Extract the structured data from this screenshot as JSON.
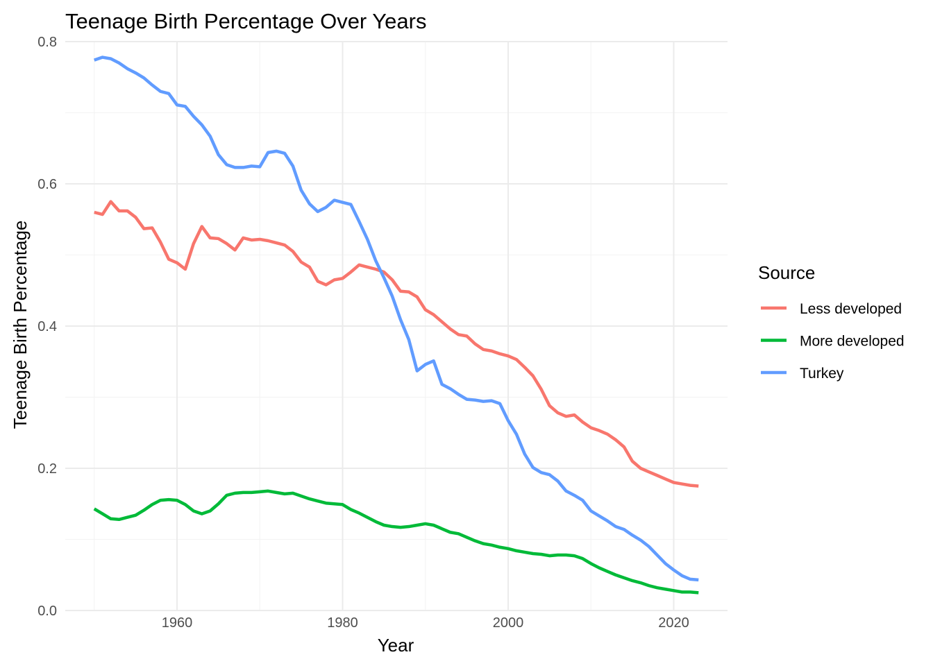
{
  "chart_data": {
    "type": "line",
    "title": "Teenage Birth Percentage Over Years",
    "xlabel": "Year",
    "ylabel": "Teenage Birth Percentage",
    "xlim": [
      1946.5,
      2026.5
    ],
    "ylim": [
      0,
      0.8
    ],
    "x_ticks": [
      1960,
      1980,
      2000,
      2020
    ],
    "y_ticks": [
      0.0,
      0.2,
      0.4,
      0.6,
      0.8
    ],
    "x_tick_labels": [
      "1960",
      "1980",
      "2000",
      "2020"
    ],
    "y_tick_labels": [
      "0.0",
      "0.2",
      "0.4",
      "0.6",
      "0.8"
    ],
    "grid": true,
    "legend": {
      "title": "Source",
      "position": "right"
    },
    "series": [
      {
        "name": "Less developed",
        "color": "#F8766D",
        "x": [
          1950,
          1951,
          1952,
          1953,
          1954,
          1955,
          1956,
          1957,
          1958,
          1959,
          1960,
          1961,
          1962,
          1963,
          1964,
          1965,
          1966,
          1967,
          1968,
          1969,
          1970,
          1971,
          1972,
          1973,
          1974,
          1975,
          1976,
          1977,
          1978,
          1979,
          1980,
          1981,
          1982,
          1983,
          1984,
          1985,
          1986,
          1987,
          1988,
          1989,
          1990,
          1991,
          1992,
          1993,
          1994,
          1995,
          1996,
          1997,
          1998,
          1999,
          2000,
          2001,
          2002,
          2003,
          2004,
          2005,
          2006,
          2007,
          2008,
          2009,
          2010,
          2011,
          2012,
          2013,
          2014,
          2015,
          2016,
          2017,
          2018,
          2019,
          2020,
          2021,
          2022,
          2023
        ],
        "y": [
          0.56,
          0.557,
          0.575,
          0.562,
          0.562,
          0.553,
          0.537,
          0.538,
          0.518,
          0.494,
          0.489,
          0.48,
          0.516,
          0.54,
          0.524,
          0.523,
          0.516,
          0.507,
          0.524,
          0.521,
          0.522,
          0.52,
          0.517,
          0.514,
          0.505,
          0.49,
          0.483,
          0.463,
          0.458,
          0.465,
          0.467,
          0.476,
          0.486,
          0.483,
          0.48,
          0.476,
          0.465,
          0.449,
          0.448,
          0.441,
          0.423,
          0.416,
          0.406,
          0.396,
          0.388,
          0.386,
          0.375,
          0.367,
          0.365,
          0.361,
          0.358,
          0.353,
          0.342,
          0.33,
          0.311,
          0.288,
          0.278,
          0.273,
          0.275,
          0.265,
          0.257,
          0.253,
          0.248,
          0.24,
          0.23,
          0.21,
          0.2,
          0.195,
          0.19,
          0.185,
          0.18,
          0.178,
          0.176,
          0.175
        ]
      },
      {
        "name": "More developed",
        "color": "#00BA38",
        "x": [
          1950,
          1951,
          1952,
          1953,
          1954,
          1955,
          1956,
          1957,
          1958,
          1959,
          1960,
          1961,
          1962,
          1963,
          1964,
          1965,
          1966,
          1967,
          1968,
          1969,
          1970,
          1971,
          1972,
          1973,
          1974,
          1975,
          1976,
          1977,
          1978,
          1979,
          1980,
          1981,
          1982,
          1983,
          1984,
          1985,
          1986,
          1987,
          1988,
          1989,
          1990,
          1991,
          1992,
          1993,
          1994,
          1995,
          1996,
          1997,
          1998,
          1999,
          2000,
          2001,
          2002,
          2003,
          2004,
          2005,
          2006,
          2007,
          2008,
          2009,
          2010,
          2011,
          2012,
          2013,
          2014,
          2015,
          2016,
          2017,
          2018,
          2019,
          2020,
          2021,
          2022,
          2023
        ],
        "y": [
          0.143,
          0.136,
          0.129,
          0.128,
          0.131,
          0.134,
          0.141,
          0.149,
          0.155,
          0.156,
          0.155,
          0.149,
          0.14,
          0.136,
          0.14,
          0.15,
          0.162,
          0.165,
          0.166,
          0.166,
          0.167,
          0.168,
          0.166,
          0.164,
          0.165,
          0.161,
          0.157,
          0.154,
          0.151,
          0.15,
          0.149,
          0.142,
          0.137,
          0.131,
          0.125,
          0.12,
          0.118,
          0.117,
          0.118,
          0.12,
          0.122,
          0.12,
          0.115,
          0.11,
          0.108,
          0.103,
          0.098,
          0.094,
          0.092,
          0.089,
          0.087,
          0.084,
          0.082,
          0.08,
          0.079,
          0.077,
          0.078,
          0.078,
          0.077,
          0.073,
          0.066,
          0.06,
          0.055,
          0.05,
          0.046,
          0.042,
          0.039,
          0.035,
          0.032,
          0.03,
          0.028,
          0.026,
          0.026,
          0.025
        ]
      },
      {
        "name": "Turkey",
        "color": "#619CFF",
        "x": [
          1950,
          1951,
          1952,
          1953,
          1954,
          1955,
          1956,
          1957,
          1958,
          1959,
          1960,
          1961,
          1962,
          1963,
          1964,
          1965,
          1966,
          1967,
          1968,
          1969,
          1970,
          1971,
          1972,
          1973,
          1974,
          1975,
          1976,
          1977,
          1978,
          1979,
          1980,
          1981,
          1982,
          1983,
          1984,
          1985,
          1986,
          1987,
          1988,
          1989,
          1990,
          1991,
          1992,
          1993,
          1994,
          1995,
          1996,
          1997,
          1998,
          1999,
          2000,
          2001,
          2002,
          2003,
          2004,
          2005,
          2006,
          2007,
          2008,
          2009,
          2010,
          2011,
          2012,
          2013,
          2014,
          2015,
          2016,
          2017,
          2018,
          2019,
          2020,
          2021,
          2022,
          2023
        ],
        "y": [
          0.774,
          0.778,
          0.776,
          0.77,
          0.762,
          0.756,
          0.749,
          0.739,
          0.73,
          0.727,
          0.711,
          0.709,
          0.695,
          0.683,
          0.667,
          0.641,
          0.627,
          0.623,
          0.623,
          0.625,
          0.624,
          0.644,
          0.646,
          0.643,
          0.625,
          0.591,
          0.572,
          0.561,
          0.567,
          0.577,
          0.574,
          0.571,
          0.547,
          0.522,
          0.492,
          0.468,
          0.442,
          0.409,
          0.381,
          0.337,
          0.346,
          0.351,
          0.318,
          0.312,
          0.304,
          0.297,
          0.296,
          0.294,
          0.295,
          0.291,
          0.267,
          0.248,
          0.22,
          0.201,
          0.194,
          0.191,
          0.182,
          0.168,
          0.162,
          0.155,
          0.14,
          0.133,
          0.126,
          0.118,
          0.114,
          0.106,
          0.099,
          0.09,
          0.078,
          0.066,
          0.057,
          0.049,
          0.044,
          0.043
        ]
      }
    ]
  }
}
